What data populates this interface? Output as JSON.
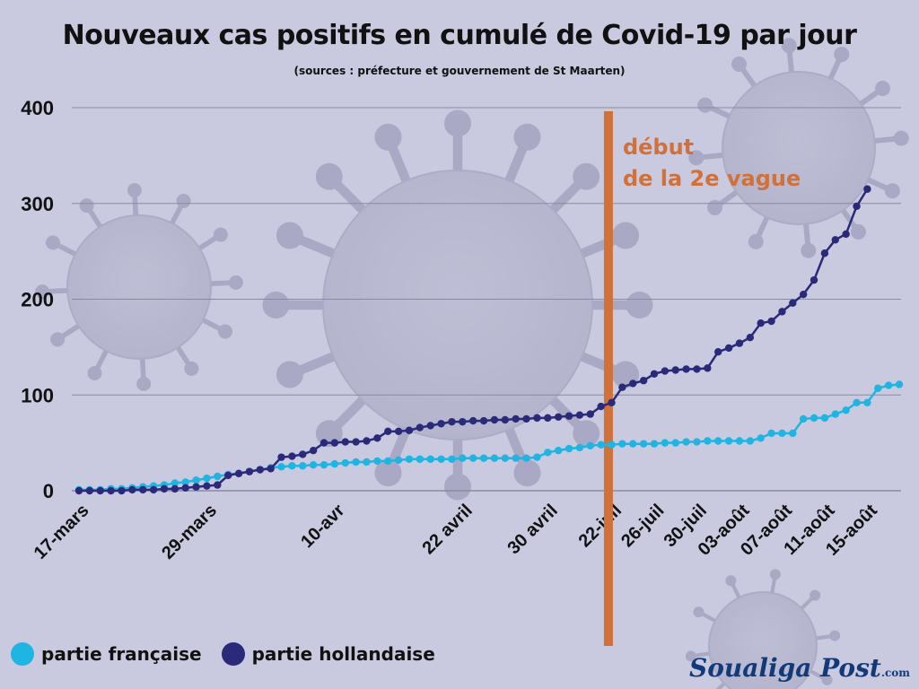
{
  "header": {
    "title": "Nouveaux cas positifs en cumulé de Covid-19  par jour",
    "subtitle": "(sources : préfecture et gouvernement de St Maarten)"
  },
  "branding": {
    "name": "Soualiga Post",
    "suffix": ".com"
  },
  "colors": {
    "background": "#c9c9df",
    "french": "#1fb5e2",
    "dutch": "#2b2a7a",
    "marker": "#d0713a",
    "grid": "#8a8aa0"
  },
  "chart_data": {
    "type": "line",
    "title": "Nouveaux cas positifs en cumulé de Covid-19  par jour",
    "subtitle": "(sources : préfecture et gouvernement de St Maarten)",
    "ylim": [
      0,
      400
    ],
    "yticks": [
      0,
      100,
      200,
      300,
      400
    ],
    "grid": true,
    "legend_position": "bottom-left",
    "tick_labels": [
      {
        "index": 0,
        "label": "17-mars"
      },
      {
        "index": 12,
        "label": "29-mars"
      },
      {
        "index": 24,
        "label": "10-avr"
      },
      {
        "index": 36,
        "label": "22 avril"
      },
      {
        "index": 44,
        "label": "30 avril"
      },
      {
        "index": 50,
        "label": "22-juil"
      },
      {
        "index": 54,
        "label": "26-juil"
      },
      {
        "index": 58,
        "label": "30-juil"
      },
      {
        "index": 62,
        "label": "03-août"
      },
      {
        "index": 66,
        "label": "07-août"
      },
      {
        "index": 70,
        "label": "11-août"
      },
      {
        "index": 74,
        "label": "15-août"
      }
    ],
    "annotation": {
      "index": 49.7,
      "lines": [
        "début",
        "de la 2e vague"
      ]
    },
    "series": [
      {
        "name": "partie française",
        "color": "#1fb5e2",
        "values": [
          1,
          1,
          1,
          2,
          2,
          3,
          4,
          5,
          6,
          8,
          9,
          11,
          13,
          15,
          17,
          18,
          20,
          22,
          24,
          25,
          26,
          26,
          27,
          27,
          28,
          29,
          30,
          30,
          31,
          31,
          32,
          33,
          33,
          33,
          33,
          33,
          34,
          34,
          34,
          34,
          34,
          34,
          34,
          35,
          40,
          42,
          44,
          45,
          47,
          48,
          48,
          49,
          49,
          49,
          49,
          50,
          50,
          51,
          51,
          52,
          52,
          52,
          52,
          52,
          55,
          60,
          60,
          60,
          75,
          76,
          76,
          80,
          84,
          92,
          92,
          107,
          110,
          111
        ]
      },
      {
        "name": "partie hollandaise",
        "color": "#2b2a7a",
        "values": [
          0,
          0,
          0,
          0,
          0,
          1,
          1,
          1,
          2,
          2,
          3,
          4,
          5,
          6,
          16,
          18,
          20,
          22,
          23,
          35,
          36,
          38,
          42,
          50,
          50,
          51,
          51,
          52,
          55,
          62,
          62,
          63,
          66,
          68,
          70,
          72,
          72,
          73,
          73,
          74,
          74,
          75,
          75,
          76,
          76,
          77,
          78,
          79,
          80,
          88,
          92,
          108,
          112,
          115,
          122,
          125,
          126,
          127,
          127,
          128,
          145,
          149,
          154,
          160,
          175,
          177,
          187,
          196,
          205,
          220,
          248,
          262,
          268,
          297,
          315
        ]
      }
    ]
  },
  "legend": [
    {
      "label": "partie française",
      "color": "#1fb5e2"
    },
    {
      "label": "partie hollandaise",
      "color": "#2b2a7a"
    }
  ]
}
